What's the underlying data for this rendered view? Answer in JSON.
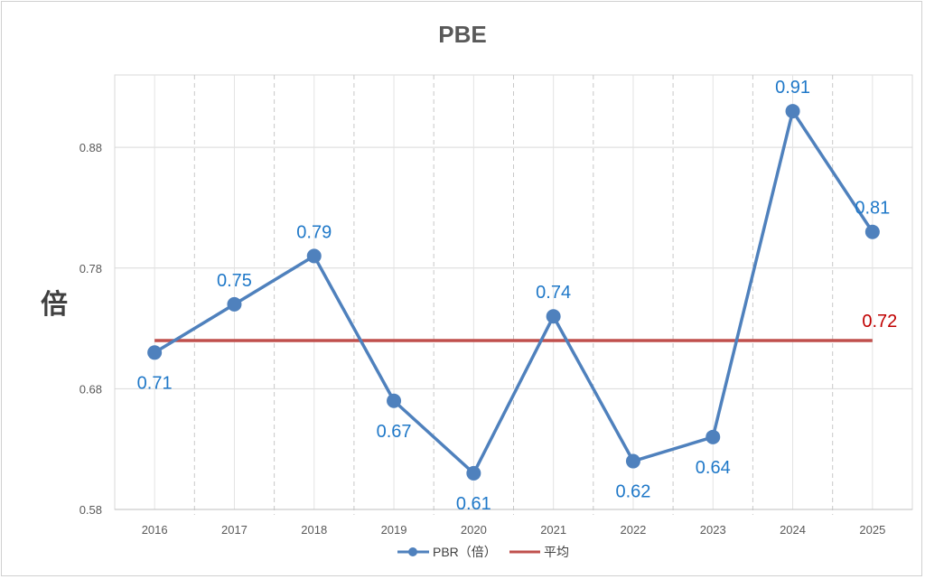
{
  "chart_data": {
    "type": "line",
    "title": "PBE",
    "ylabel": "倍",
    "xlabel": "",
    "categories": [
      "2016",
      "2017",
      "2018",
      "2019",
      "2020",
      "2021",
      "2022",
      "2023",
      "2024",
      "2025"
    ],
    "series": [
      {
        "name": "PBR（倍）",
        "values": [
          0.71,
          0.75,
          0.79,
          0.67,
          0.61,
          0.74,
          0.62,
          0.64,
          0.91,
          0.81
        ],
        "color": "#4f81bd",
        "label_color": "#1f78c8",
        "labels": [
          "0.71",
          "0.75",
          "0.79",
          "0.67",
          "0.61",
          "0.74",
          "0.62",
          "0.64",
          "0.91",
          "0.81"
        ]
      },
      {
        "name": "平均",
        "values": [
          0.72,
          0.72,
          0.72,
          0.72,
          0.72,
          0.72,
          0.72,
          0.72,
          0.72,
          0.72
        ],
        "color": "#c0504d",
        "label_color": "#c00000",
        "end_label": "0.72"
      }
    ],
    "yticks": [
      "0.58",
      "0.68",
      "0.78",
      "0.88"
    ],
    "ylim": [
      0.58,
      0.94
    ],
    "grid": true,
    "legend": "bottom"
  }
}
